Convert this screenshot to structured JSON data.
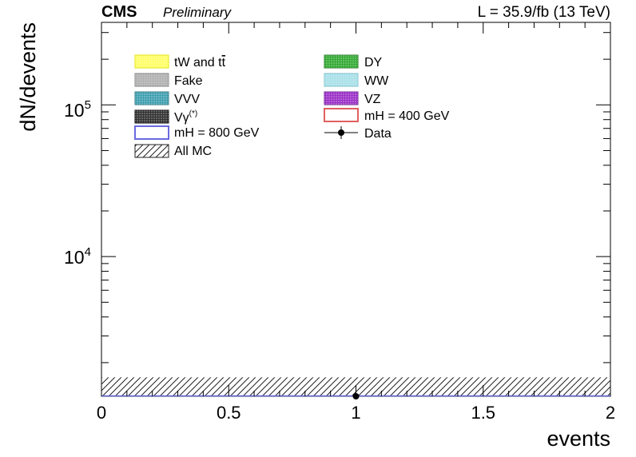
{
  "header": {
    "experiment": "CMS",
    "status": "Preliminary",
    "lumi": "L = 35.9/fb (13 TeV)"
  },
  "chart_data": {
    "type": "histogram",
    "xlabel": "events",
    "ylabel": "dN/devents",
    "y_scale": "log",
    "xlim": [
      0,
      2
    ],
    "ylim": [
      1200,
      350000
    ],
    "x_ticks": [
      "0",
      "0.5",
      "1",
      "1.5",
      "2"
    ],
    "y_tick_labels": [
      {
        "base": "10",
        "exp": "4",
        "value": 10000
      },
      {
        "base": "10",
        "exp": "5",
        "value": 100000
      }
    ],
    "legend_placement": "top-left",
    "legend": [
      {
        "label": "tW and t",
        "overbar": "t",
        "color": "#ffff66",
        "style": "fill-hatch"
      },
      {
        "label": "DY",
        "color": "#33aa33",
        "style": "fill-hatch"
      },
      {
        "label": "Fake",
        "color": "#b0b0b0",
        "style": "fill-hatch"
      },
      {
        "label": "WW",
        "color": "#a8e0e8",
        "style": "fill-hatch"
      },
      {
        "label": "VVV",
        "color": "#3f9fb0",
        "style": "fill-hatch"
      },
      {
        "label": "VZ",
        "color": "#9b30c8",
        "style": "fill-hatch"
      },
      {
        "label": "Vγ",
        "sup": "(*)",
        "color": "#333333",
        "style": "fill-hatch"
      },
      {
        "label": "mH = 400 GeV",
        "color": "#e06060",
        "style": "line-box"
      },
      {
        "label": "mH = 800 GeV",
        "color": "#6a6ae0",
        "style": "line-box"
      },
      {
        "label": "Data",
        "color": "#000000",
        "style": "marker"
      },
      {
        "label": "All MC",
        "color": "#222222",
        "style": "hatch-only"
      }
    ],
    "data_points": [
      {
        "x": 1,
        "y": 1200
      }
    ],
    "all_mc_band": {
      "x_range": [
        0,
        2
      ],
      "y_upper": 1600
    }
  }
}
